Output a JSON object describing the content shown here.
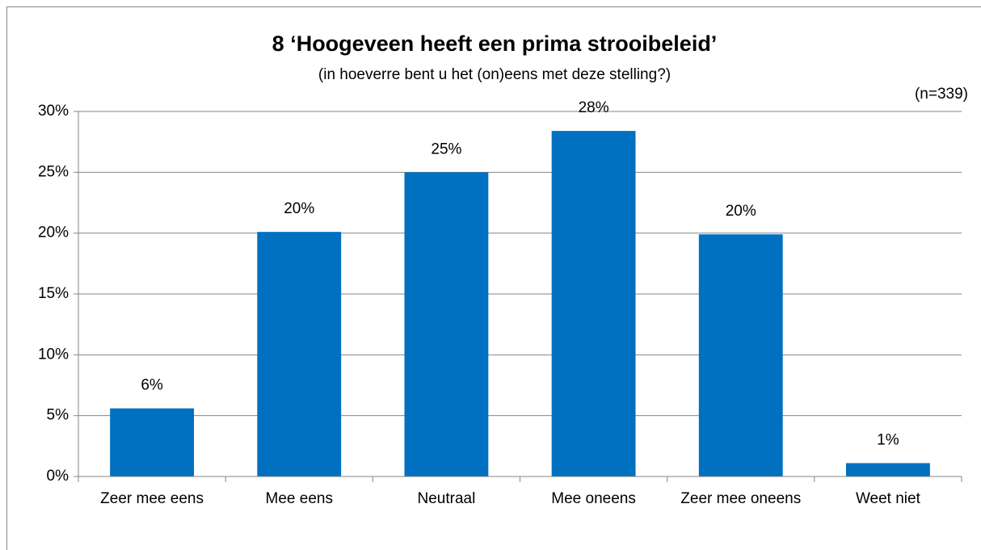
{
  "chart_data": {
    "type": "bar",
    "title": "8 ‘Hoogeveen heeft een prima strooibeleid’",
    "subtitle": "(in hoeverre bent u het (on)eens met deze stelling?)",
    "annotation": "(n=339)",
    "categories": [
      "Zeer mee eens",
      "Mee eens",
      "Neutraal",
      "Mee oneens",
      "Zeer mee oneens",
      "Weet niet"
    ],
    "values": [
      5.6,
      20.1,
      25.0,
      28.4,
      19.9,
      1.1
    ],
    "value_labels": [
      "6%",
      "20%",
      "25%",
      "28%",
      "20%",
      "1%"
    ],
    "color": "#0070c0",
    "ylim": [
      0,
      30
    ],
    "yticks": [
      {
        "value": 0,
        "label": "0%"
      },
      {
        "value": 5,
        "label": "5%"
      },
      {
        "value": 10,
        "label": "10%"
      },
      {
        "value": 15,
        "label": "15%"
      },
      {
        "value": 20,
        "label": "20%"
      },
      {
        "value": 25,
        "label": "25%"
      },
      {
        "value": 30,
        "label": "30%"
      }
    ],
    "grid": true
  }
}
